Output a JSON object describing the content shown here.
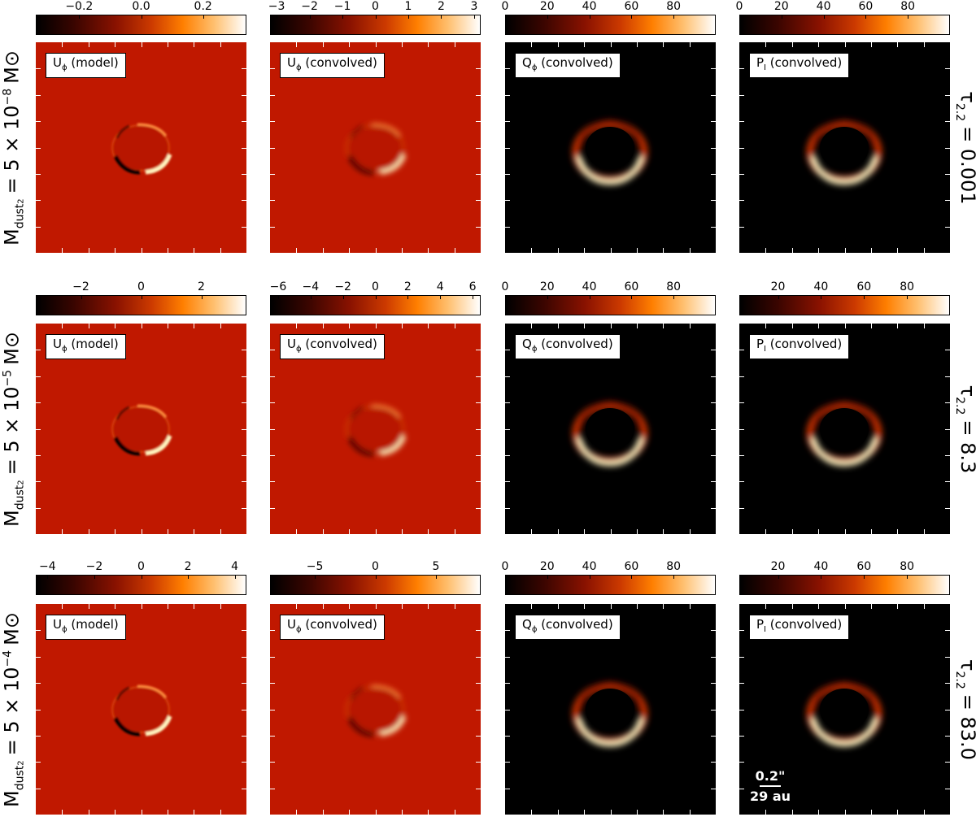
{
  "rows": [
    {
      "mass_prefix": "M",
      "mass_sub": "dust",
      "mass_subsub": "2",
      "mass_value": "= 5 × 10",
      "mass_exp": "−8",
      "mass_unit": "M⊙",
      "tau_symbol": "τ",
      "tau_sub": "2.2",
      "tau_value": "= 0.001",
      "panels": [
        {
          "label_main": "U",
          "label_sub": "ϕ",
          "label_rest": " (model)",
          "type": "residual-model",
          "ticks": [
            {
              "v": -0.2,
              "t": "−0.2"
            },
            {
              "v": 0.0,
              "t": "0.0"
            },
            {
              "v": 0.2,
              "t": "0.2"
            }
          ],
          "range": [
            -0.34,
            0.34
          ]
        },
        {
          "label_main": "U",
          "label_sub": "ϕ",
          "label_rest": " (convolved)",
          "type": "residual-conv",
          "ticks": [
            {
              "v": -3,
              "t": "−3"
            },
            {
              "v": -2,
              "t": "−2"
            },
            {
              "v": -1,
              "t": "−1"
            },
            {
              "v": 0,
              "t": "0"
            },
            {
              "v": 1,
              "t": "1"
            },
            {
              "v": 2,
              "t": "2"
            },
            {
              "v": 3,
              "t": "3"
            }
          ],
          "range": [
            -3.2,
            3.2
          ]
        },
        {
          "label_main": "Q",
          "label_sub": "ϕ",
          "label_rest": " (convolved)",
          "type": "ring",
          "ticks": [
            {
              "v": 0,
              "t": "0"
            },
            {
              "v": 20,
              "t": "20"
            },
            {
              "v": 40,
              "t": "40"
            },
            {
              "v": 60,
              "t": "60"
            },
            {
              "v": 80,
              "t": "80"
            }
          ],
          "range": [
            0,
            100
          ]
        },
        {
          "label_main": "P",
          "label_sub": "I",
          "label_rest": " (convolved)",
          "type": "ring",
          "ticks": [
            {
              "v": 0,
              "t": "0"
            },
            {
              "v": 20,
              "t": "20"
            },
            {
              "v": 40,
              "t": "40"
            },
            {
              "v": 60,
              "t": "60"
            },
            {
              "v": 80,
              "t": "80"
            }
          ],
          "range": [
            0,
            100
          ]
        }
      ]
    },
    {
      "mass_prefix": "M",
      "mass_sub": "dust",
      "mass_subsub": "2",
      "mass_value": "= 5 × 10",
      "mass_exp": "−5",
      "mass_unit": "M⊙",
      "tau_symbol": "τ",
      "tau_sub": "2.2",
      "tau_value": "= 8.3",
      "panels": [
        {
          "label_main": "U",
          "label_sub": "ϕ",
          "label_rest": " (model)",
          "type": "residual-model",
          "ticks": [
            {
              "v": -2,
              "t": "−2"
            },
            {
              "v": 0,
              "t": "0"
            },
            {
              "v": 2,
              "t": "2"
            }
          ],
          "range": [
            -3.5,
            3.5
          ]
        },
        {
          "label_main": "U",
          "label_sub": "ϕ",
          "label_rest": " (convolved)",
          "type": "residual-conv",
          "ticks": [
            {
              "v": -6,
              "t": "−6"
            },
            {
              "v": -4,
              "t": "−4"
            },
            {
              "v": -2,
              "t": "−2"
            },
            {
              "v": 0,
              "t": "0"
            },
            {
              "v": 2,
              "t": "2"
            },
            {
              "v": 4,
              "t": "4"
            },
            {
              "v": 6,
              "t": "6"
            }
          ],
          "range": [
            -6.5,
            6.5
          ]
        },
        {
          "label_main": "Q",
          "label_sub": "ϕ",
          "label_rest": " (convolved)",
          "type": "ring",
          "ticks": [
            {
              "v": 0,
              "t": "0"
            },
            {
              "v": 20,
              "t": "20"
            },
            {
              "v": 40,
              "t": "40"
            },
            {
              "v": 60,
              "t": "60"
            },
            {
              "v": 80,
              "t": "80"
            }
          ],
          "range": [
            0,
            100
          ]
        },
        {
          "label_main": "P",
          "label_sub": "I",
          "label_rest": " (convolved)",
          "type": "ring",
          "ticks": [
            {
              "v": 20,
              "t": "20"
            },
            {
              "v": 40,
              "t": "40"
            },
            {
              "v": 60,
              "t": "60"
            },
            {
              "v": 80,
              "t": "80"
            }
          ],
          "range": [
            2,
            100
          ]
        }
      ]
    },
    {
      "mass_prefix": "M",
      "mass_sub": "dust",
      "mass_subsub": "2",
      "mass_value": "= 5 × 10",
      "mass_exp": "−4",
      "mass_unit": "M⊙",
      "tau_symbol": "τ",
      "tau_sub": "2.2",
      "tau_value": "= 83.0",
      "panels": [
        {
          "label_main": "U",
          "label_sub": "ϕ",
          "label_rest": " (model)",
          "type": "residual-model",
          "ticks": [
            {
              "v": -4,
              "t": "−4"
            },
            {
              "v": -2,
              "t": "−2"
            },
            {
              "v": 0,
              "t": "0"
            },
            {
              "v": 2,
              "t": "2"
            },
            {
              "v": 4,
              "t": "4"
            }
          ],
          "range": [
            -4.5,
            4.5
          ]
        },
        {
          "label_main": "U",
          "label_sub": "ϕ",
          "label_rest": " (convolved)",
          "type": "residual-conv",
          "ticks": [
            {
              "v": -5,
              "t": "−5"
            },
            {
              "v": 0,
              "t": "0"
            },
            {
              "v": 5,
              "t": "5"
            }
          ],
          "range": [
            -8.7,
            8.7
          ]
        },
        {
          "label_main": "Q",
          "label_sub": "ϕ",
          "label_rest": " (convolved)",
          "type": "ring",
          "ticks": [
            {
              "v": 0,
              "t": "0"
            },
            {
              "v": 20,
              "t": "20"
            },
            {
              "v": 40,
              "t": "40"
            },
            {
              "v": 60,
              "t": "60"
            },
            {
              "v": 80,
              "t": "80"
            }
          ],
          "range": [
            0,
            100
          ]
        },
        {
          "label_main": "P",
          "label_sub": "I",
          "label_rest": " (convolved)",
          "type": "ring",
          "ticks": [
            {
              "v": 20,
              "t": "20"
            },
            {
              "v": 40,
              "t": "40"
            },
            {
              "v": 60,
              "t": "60"
            },
            {
              "v": 80,
              "t": "80"
            }
          ],
          "range": [
            2,
            100
          ]
        }
      ]
    }
  ],
  "scalebar": {
    "angle": "0.2\"",
    "distance": "29 au"
  },
  "colors": {
    "residual_bg": "#c01800",
    "ring_bg": "#000000",
    "ring_glow": "#fff2c0"
  }
}
